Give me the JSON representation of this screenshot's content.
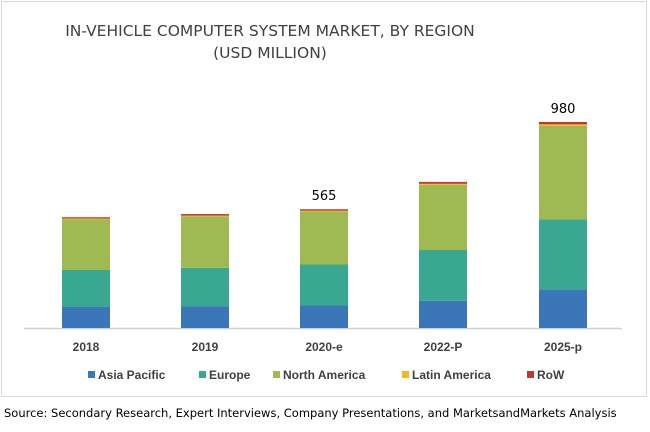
{
  "chart_data": {
    "type": "bar",
    "stacked": true,
    "title": "IN-VEHICLE COMPUTER SYSTEM MARKET, BY REGION",
    "subtitle": "(USD MILLION)",
    "categories": [
      "2018",
      "2019",
      "2020-e",
      "2022-P",
      "2025-p"
    ],
    "series": [
      {
        "name": "Asia Pacific",
        "color": "#3a76b8",
        "values": [
          100,
          104,
          107,
          130,
          184
        ]
      },
      {
        "name": "Europe",
        "color": "#3aa890",
        "values": [
          176,
          182,
          195,
          241,
          333
        ]
      },
      {
        "name": "North America",
        "color": "#9fba52",
        "values": [
          242,
          246,
          252,
          310,
          445
        ]
      },
      {
        "name": "Latin America",
        "color": "#f2b81c",
        "values": [
          3,
          3,
          4,
          5,
          7
        ]
      },
      {
        "name": "RoW",
        "color": "#c0392b",
        "values": [
          6,
          7,
          7,
          9,
          11
        ]
      }
    ],
    "data_labels": [
      null,
      null,
      "565",
      null,
      "980"
    ],
    "ylim": [
      0,
      1000
    ],
    "grid": false,
    "legend": "bottom"
  },
  "source": "Source: Secondary Research, Expert Interviews, Company Presentations, and MarketsandMarkets Analysis"
}
